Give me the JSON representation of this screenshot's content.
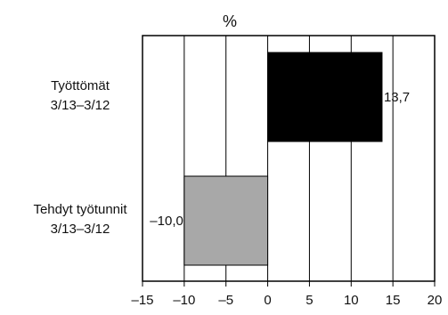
{
  "chart_data": {
    "type": "bar",
    "orientation": "horizontal",
    "unit_label": "%",
    "categories": [
      {
        "line1": "Työttömät",
        "line2": "3/13–3/12"
      },
      {
        "line1": "Tehdyt työtunnit",
        "line2": "3/13–3/12"
      }
    ],
    "values": [
      13.7,
      -10.0
    ],
    "value_labels": [
      "13,7",
      "–10,0"
    ],
    "bar_colors": [
      "#000000",
      "#a8a8a8"
    ],
    "xlim": [
      -15,
      20
    ],
    "x_ticks": [
      -15,
      -10,
      -5,
      0,
      5,
      10,
      15,
      20
    ],
    "x_tick_labels": [
      "–15",
      "–10",
      "–5",
      "0",
      "5",
      "10",
      "15",
      "20"
    ],
    "grid": "vertical"
  }
}
